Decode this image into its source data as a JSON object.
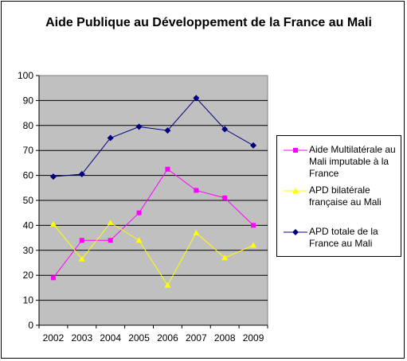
{
  "chart_data": {
    "type": "line",
    "title": "Aide Publique au Développement de la France au Mali",
    "categories": [
      "2002",
      "2003",
      "2004",
      "2005",
      "2006",
      "2007",
      "2008",
      "2009"
    ],
    "ylim": [
      0,
      100
    ],
    "yticks": [
      "0",
      "10",
      "20",
      "30",
      "40",
      "50",
      "60",
      "70",
      "80",
      "90",
      "100"
    ],
    "grid": true,
    "legend_position": "right",
    "plot_background": "#c0c0c0",
    "series": [
      {
        "name": "Aide Multilatérale au Mali imputable à la France",
        "color": "#ff00ff",
        "marker": "square",
        "values": [
          19,
          34,
          34,
          45,
          62.5,
          54,
          51,
          40
        ]
      },
      {
        "name": "APD bilatérale française au Mali",
        "color": "#ffff00",
        "marker": "triangle",
        "values": [
          40.5,
          26.5,
          41,
          34,
          16,
          37,
          27,
          32
        ]
      },
      {
        "name": "APD totale de la France au Mali",
        "color": "#000080",
        "marker": "diamond",
        "values": [
          59.5,
          60.5,
          75,
          79.5,
          78,
          91,
          78.5,
          72
        ]
      }
    ]
  }
}
